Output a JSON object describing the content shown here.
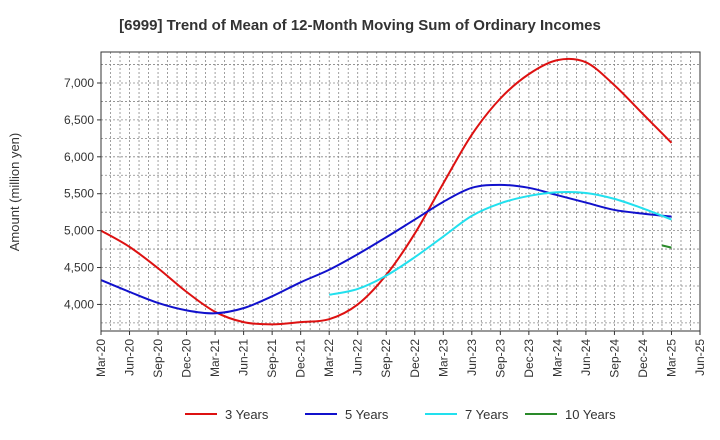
{
  "chart_data": {
    "type": "line",
    "title": "[6999]  Trend of Mean of 12-Month Moving Sum of Ordinary Incomes",
    "xlabel": "",
    "ylabel": "Amount (million yen)",
    "ylim": [
      3640,
      7420
    ],
    "yticks": [
      4000,
      4500,
      5000,
      5500,
      6000,
      6500,
      7000
    ],
    "ytick_labels": [
      "4,000",
      "4,500",
      "5,000",
      "5,500",
      "6,000",
      "6,500",
      "7,000"
    ],
    "categories": [
      "Mar-20",
      "Jun-20",
      "Sep-20",
      "Dec-20",
      "Mar-21",
      "Jun-21",
      "Sep-21",
      "Dec-21",
      "Mar-22",
      "Jun-22",
      "Sep-22",
      "Dec-22",
      "Mar-23",
      "Jun-23",
      "Sep-23",
      "Dec-23",
      "Mar-24",
      "Jun-24",
      "Sep-24",
      "Dec-24",
      "Mar-25",
      "Jun-25"
    ],
    "grid": true,
    "series": [
      {
        "name": "3 Years",
        "color": "#dd1111",
        "values": [
          5000,
          4780,
          4490,
          4170,
          3900,
          3760,
          3730,
          3760,
          3800,
          4000,
          4400,
          4960,
          5640,
          6300,
          6790,
          7120,
          7310,
          7280,
          6970,
          6580,
          6190,
          null
        ]
      },
      {
        "name": "5 Years",
        "color": "#1111cc",
        "values": [
          4330,
          4170,
          4020,
          3920,
          3880,
          3950,
          4110,
          4300,
          4470,
          4680,
          4910,
          5150,
          5390,
          5580,
          5620,
          5580,
          5480,
          5380,
          5280,
          5230,
          5190,
          null
        ]
      },
      {
        "name": "7 Years",
        "color": "#22e0ee",
        "values": [
          null,
          null,
          null,
          null,
          null,
          null,
          null,
          null,
          4130,
          4210,
          4390,
          4640,
          4920,
          5200,
          5370,
          5470,
          5520,
          5510,
          5430,
          5300,
          5150,
          null
        ]
      },
      {
        "name": "10 Years",
        "color": "#2a8a2a",
        "values": [
          null,
          null,
          null,
          null,
          null,
          null,
          null,
          null,
          null,
          null,
          null,
          null,
          null,
          null,
          null,
          null,
          null,
          null,
          null,
          null,
          4770,
          null
        ],
        "segment_start": 4800
      }
    ],
    "legend_position": "bottom"
  }
}
